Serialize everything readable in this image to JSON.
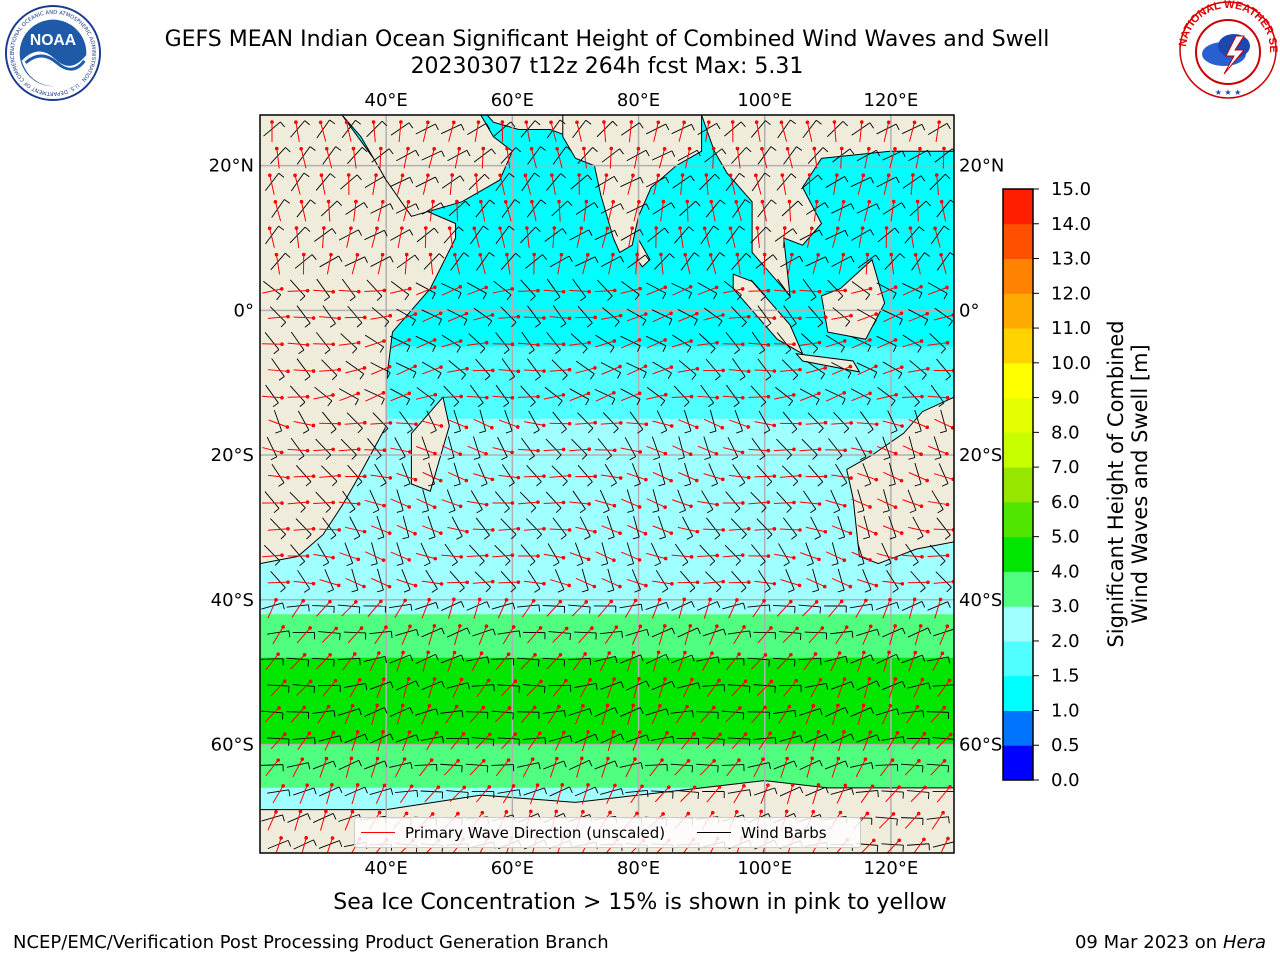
{
  "header": {
    "title_line1": "GEFS MEAN Indian Ocean Significant Height of Combined Wind Waves and Swell",
    "title_line2": "20230307 t12z 264h fcst   Max: 5.31"
  },
  "logos": {
    "noaa": {
      "text": "NOAA",
      "ring_text": "NATIONAL OCEANIC AND ATMOSPHERIC ADMINISTRATION · U.S. DEPARTMENT OF COMMERCE"
    },
    "nws": {
      "ring_text": "NATIONAL WEATHER SERVICE"
    }
  },
  "map": {
    "lon_range": [
      20,
      130
    ],
    "lat_range": [
      -75,
      27
    ],
    "lon_ticks": [
      {
        "value": 40,
        "label": "40°E"
      },
      {
        "value": 60,
        "label": "60°E"
      },
      {
        "value": 80,
        "label": "80°E"
      },
      {
        "value": 100,
        "label": "100°E"
      },
      {
        "value": 120,
        "label": "120°E"
      }
    ],
    "lat_ticks": [
      {
        "value": 20,
        "label": "20°N"
      },
      {
        "value": 0,
        "label": "0°"
      },
      {
        "value": -20,
        "label": "20°S"
      },
      {
        "value": -40,
        "label": "40°S"
      },
      {
        "value": -60,
        "label": "60°S"
      }
    ],
    "grid": true,
    "colors": {
      "land": "#efecdc",
      "coast": "#000000",
      "grid": "#b0b0b0",
      "wave_arrow": "#ff0000",
      "wind_barb": "#000000"
    },
    "shading_bands": [
      {
        "lat_from": 27,
        "lat_to": -5,
        "level": 1.0
      },
      {
        "lat_from": -5,
        "lat_to": -15,
        "level": 1.8
      },
      {
        "lat_from": -15,
        "lat_to": -33,
        "level": 2.3
      },
      {
        "lat_from": -33,
        "lat_to": -42,
        "level": 2.8
      },
      {
        "lat_from": -42,
        "lat_to": -48,
        "level": 3.5
      },
      {
        "lat_from": -48,
        "lat_to": -60,
        "level": 4.3
      },
      {
        "lat_from": -60,
        "lat_to": -66,
        "level": 3.6
      },
      {
        "lat_from": -66,
        "lat_to": -75,
        "level": 2.6
      }
    ],
    "legend": [
      {
        "label": "Primary Wave Direction (unscaled)",
        "color": "#ff0000"
      },
      {
        "label": "Wind Barbs",
        "color": "#000000"
      }
    ]
  },
  "colorbar": {
    "label": "Significant Height of Combined\nWind Waves and Swell [m]",
    "levels": [
      0.0,
      0.5,
      1.0,
      1.5,
      2.0,
      3.0,
      4.0,
      5.0,
      6.0,
      7.0,
      8.0,
      9.0,
      10.0,
      11.0,
      12.0,
      13.0,
      14.0,
      15.0
    ],
    "tick_labels": [
      "0.0",
      "0.5",
      "1.0",
      "1.5",
      "2.0",
      "3.0",
      "4.0",
      "5.0",
      "6.0",
      "7.0",
      "8.0",
      "9.0",
      "10.0",
      "11.0",
      "12.0",
      "13.0",
      "14.0",
      "15.0"
    ],
    "colors": [
      "#0000ff",
      "#0073ff",
      "#00ffff",
      "#50ffff",
      "#a0ffff",
      "#50ff80",
      "#00e600",
      "#50e600",
      "#96e600",
      "#c8ff00",
      "#e6ff00",
      "#ffff00",
      "#ffd200",
      "#ffaa00",
      "#ff8200",
      "#ff5000",
      "#ff1e00"
    ]
  },
  "caption": "Sea Ice Concentration > 15% is shown in pink to yellow",
  "footer": {
    "left": "NCEP/EMC/Verification Post Processing Product Generation Branch",
    "right_date": "09 Mar 2023 on",
    "right_host": "Hera"
  }
}
